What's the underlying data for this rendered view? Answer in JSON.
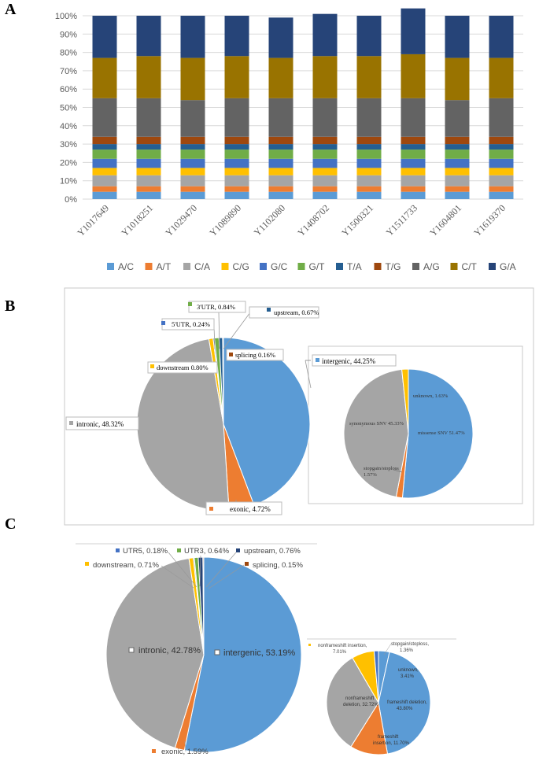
{
  "chart_data": [
    {
      "type": "bar",
      "stacked": true,
      "panel_label": "A",
      "ylim": [
        0,
        100
      ],
      "y_ticks": [
        "0%",
        "10%",
        "20%",
        "30%",
        "40%",
        "50%",
        "60%",
        "70%",
        "80%",
        "90%",
        "100%"
      ],
      "categories": [
        "Y1017649",
        "Y1018251",
        "Y1029470",
        "Y1089890",
        "Y1102080",
        "Y1408702",
        "Y1500321",
        "Y1511733",
        "Y1604801",
        "Y1619370"
      ],
      "legend_position": "bottom",
      "series": [
        {
          "name": "A/C",
          "color": "#5b9bd5",
          "values": [
            4,
            4,
            4,
            4,
            4,
            4,
            4,
            4,
            4,
            4
          ]
        },
        {
          "name": "A/T",
          "color": "#ed7d31",
          "values": [
            3,
            3,
            3,
            3,
            3,
            3,
            3,
            3,
            3,
            3
          ]
        },
        {
          "name": "C/A",
          "color": "#a5a5a5",
          "values": [
            6,
            6,
            6,
            6,
            6,
            6,
            6,
            6,
            6,
            6
          ]
        },
        {
          "name": "C/G",
          "color": "#ffc000",
          "values": [
            4,
            4,
            4,
            4,
            4,
            4,
            4,
            4,
            4,
            4
          ]
        },
        {
          "name": "G/C",
          "color": "#4472c4",
          "values": [
            5,
            5,
            5,
            5,
            5,
            5,
            5,
            5,
            5,
            5
          ]
        },
        {
          "name": "G/T",
          "color": "#70ad47",
          "values": [
            5,
            5,
            5,
            5,
            5,
            5,
            5,
            5,
            5,
            5
          ]
        },
        {
          "name": "T/A",
          "color": "#255e91",
          "values": [
            3,
            3,
            3,
            3,
            3,
            3,
            3,
            3,
            3,
            3
          ]
        },
        {
          "name": "T/G",
          "color": "#9e480e",
          "values": [
            4,
            4,
            4,
            4,
            4,
            4,
            4,
            4,
            4,
            4
          ]
        },
        {
          "name": "A/G",
          "color": "#636363",
          "values": [
            21,
            21,
            20,
            21,
            21,
            21,
            21,
            21,
            20,
            21
          ]
        },
        {
          "name": "C/T",
          "color": "#997300",
          "values": [
            22,
            23,
            23,
            23,
            22,
            23,
            23,
            24,
            23,
            22
          ]
        },
        {
          "name": "G/A",
          "color": "#264478",
          "values": [
            23,
            22,
            23,
            22,
            22,
            23,
            22,
            25,
            23,
            23
          ]
        }
      ]
    },
    {
      "type": "pie",
      "panel_label": "B",
      "title": "",
      "slices": [
        {
          "name": "intergenic",
          "label": "intergenic, 44.25%",
          "value": 44.25,
          "color": "#5b9bd5"
        },
        {
          "name": "exonic",
          "label": "exonic, 4.72%",
          "value": 4.72,
          "color": "#ed7d31"
        },
        {
          "name": "intronic",
          "label": "intronic, 48.32%",
          "value": 48.32,
          "color": "#a5a5a5"
        },
        {
          "name": "downstream",
          "label": "downstream 0.80%",
          "value": 0.8,
          "color": "#ffc000"
        },
        {
          "name": "5'UTR",
          "label": "5'UTR, 0.24%",
          "value": 0.24,
          "color": "#4472c4"
        },
        {
          "name": "3'UTR",
          "label": "3'UTR, 0.84%",
          "value": 0.84,
          "color": "#70ad47"
        },
        {
          "name": "upstream",
          "label": "upstream, 0.67%",
          "value": 0.67,
          "color": "#255e91"
        },
        {
          "name": "splicing",
          "label": "splicing 0.16%",
          "value": 0.16,
          "color": "#9e480e"
        }
      ],
      "sub_pie": {
        "slices": [
          {
            "name": "missense SNV",
            "label": "missense SNV  51.47%",
            "value": 51.47,
            "color": "#5b9bd5"
          },
          {
            "name": "stopgain/stoploss",
            "label_line1": "stopgain/stoploss",
            "label_line2": "1.57%",
            "value": 1.57,
            "color": "#ed7d31"
          },
          {
            "name": "synonymous SNV",
            "label": "synonymous SNV  45.33%",
            "value": 45.33,
            "color": "#a5a5a5"
          },
          {
            "name": "unknown",
            "label": "unknown, 1.63%",
            "value": 1.63,
            "color": "#ffc000"
          }
        ]
      }
    },
    {
      "type": "pie",
      "panel_label": "C",
      "slices": [
        {
          "name": "intergenic",
          "label": "intergenic, 53.19%",
          "value": 53.19,
          "color": "#5b9bd5"
        },
        {
          "name": "exonic",
          "label": "exonic, 1.59%",
          "value": 1.59,
          "color": "#ed7d31"
        },
        {
          "name": "intronic",
          "label": "intronic, 42.78%",
          "value": 42.78,
          "color": "#a5a5a5"
        },
        {
          "name": "downstream",
          "label": "downstream, 0.71%",
          "value": 0.71,
          "color": "#ffc000"
        },
        {
          "name": "UTR5",
          "label": "UTR5, 0.18%",
          "value": 0.18,
          "color": "#4472c4"
        },
        {
          "name": "UTR3",
          "label": "UTR3, 0.64%",
          "value": 0.64,
          "color": "#70ad47"
        },
        {
          "name": "upstream",
          "label": "upstream, 0.76%",
          "value": 0.76,
          "color": "#264478"
        },
        {
          "name": "splicing",
          "label": "splicing, 0.15%",
          "value": 0.15,
          "color": "#9e480e"
        }
      ],
      "sub_pie": {
        "slices": [
          {
            "name": "unknown",
            "label_line1": "unknown,",
            "label_line2": "3.41%",
            "value": 3.41,
            "color": "#5b9bd5"
          },
          {
            "name": "frameshift deletion",
            "label_line1": "frameshift deletion,",
            "label_line2": "43.80%",
            "value": 43.8,
            "color": "#5b9bd5"
          },
          {
            "name": "frameshift insertion",
            "label_line1": "frameshift",
            "label_line2": "insertion, 11.70%",
            "value": 11.7,
            "color": "#ed7d31"
          },
          {
            "name": "nonframeshift deletion",
            "label_line1": "nonframeshift",
            "label_line2": "deletion, 32.72%",
            "value": 32.72,
            "color": "#a5a5a5"
          },
          {
            "name": "nonframeshift insertion",
            "label_line1": "nonframeshift insertion,",
            "label_line2": "7.01%",
            "value": 7.01,
            "color": "#ffc000"
          },
          {
            "name": "stopgain/stoploss",
            "label_line1": "stopgain/stoploss,",
            "label_line2": "1.36%",
            "value": 1.36,
            "color": "#4472c4"
          }
        ]
      }
    }
  ]
}
